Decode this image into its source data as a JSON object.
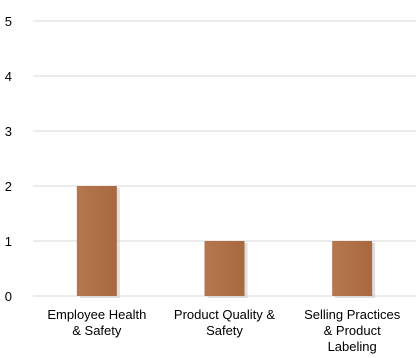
{
  "chart_data": {
    "type": "bar",
    "categories": [
      [
        "Employee Health",
        "& Safety"
      ],
      [
        "Product Quality &",
        "Safety"
      ],
      [
        "Selling Practices",
        "& Product",
        "Labeling"
      ]
    ],
    "values": [
      2,
      1,
      1
    ],
    "y_ticks": [
      "0",
      "1",
      "2",
      "3",
      "4",
      "5"
    ],
    "ylim": [
      0,
      5
    ],
    "grid": true,
    "colors": {
      "bar_top": "#b5774f",
      "bar_bottom": "#a9693f",
      "bar_shadow": "#c9c9c9",
      "grid": "#d9d9d9",
      "axis": "#d9d9d9"
    }
  }
}
